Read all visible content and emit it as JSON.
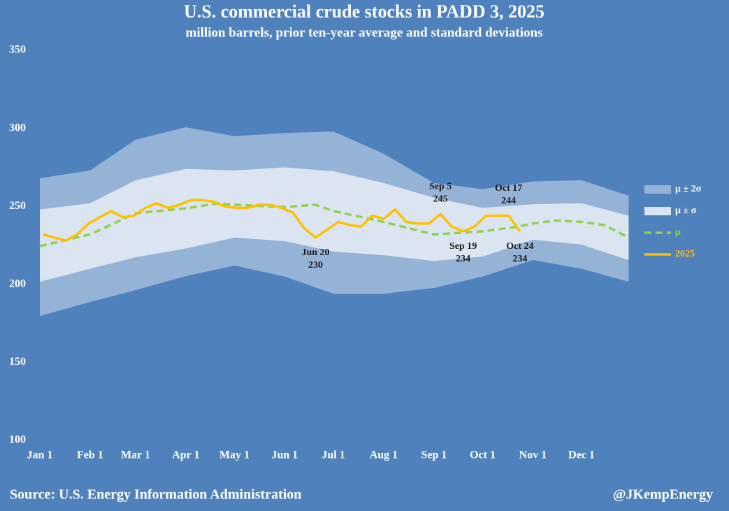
{
  "chart_data": {
    "type": "line",
    "title": "U.S. commercial crude stocks in PADD 3, 2025",
    "subtitle": "million barrels, prior ten-year average and standard deviations",
    "source": "Source: U.S. Energy Information Administration",
    "credit": "@JKempEnergy",
    "xlim": [
      0,
      365
    ],
    "xticks": [
      {
        "value": 0,
        "label": "Jan 1"
      },
      {
        "value": 31,
        "label": "Feb 1"
      },
      {
        "value": 59,
        "label": "Mar 1"
      },
      {
        "value": 90,
        "label": "Apr 1"
      },
      {
        "value": 120,
        "label": "May 1"
      },
      {
        "value": 151,
        "label": "Jun 1"
      },
      {
        "value": 181,
        "label": "Jul 1"
      },
      {
        "value": 212,
        "label": "Aug 1"
      },
      {
        "value": 243,
        "label": "Sep 1"
      },
      {
        "value": 273,
        "label": "Oct 1"
      },
      {
        "value": 304,
        "label": "Nov 1"
      },
      {
        "value": 334,
        "label": "Dec 1"
      }
    ],
    "ylim": [
      100,
      350
    ],
    "yticks": [
      100,
      150,
      200,
      250,
      300,
      350
    ],
    "grid": false,
    "legend": "right",
    "series": [
      {
        "name": "μ ± 2σ",
        "kind": "band",
        "color": "#95b3d7",
        "x": [
          0,
          31,
          59,
          90,
          120,
          151,
          181,
          212,
          243,
          273,
          304,
          334,
          363
        ],
        "upper": [
          268,
          273,
          292.7,
          300.7,
          295,
          297,
          298,
          283.7,
          265,
          261,
          266,
          266.7,
          256.8
        ],
        "lower": [
          179.7,
          188.7,
          196.3,
          205.3,
          212,
          205,
          194,
          194,
          197.7,
          205,
          215.6,
          210,
          201.7
        ]
      },
      {
        "name": "μ ± σ",
        "kind": "band",
        "color": "#dbe5f1",
        "x": [
          0,
          31,
          59,
          90,
          120,
          151,
          181,
          212,
          243,
          273,
          304,
          334,
          363
        ],
        "upper": [
          248,
          252,
          266.7,
          274,
          273,
          275,
          272.5,
          265,
          255.5,
          249,
          251.4,
          252,
          244
        ],
        "lower": [
          201.7,
          210,
          217.4,
          223,
          230,
          227.7,
          221,
          218.7,
          215,
          217.8,
          228.6,
          225.5,
          215.6
        ]
      },
      {
        "name": "μ",
        "kind": "line",
        "dashed": true,
        "color": "#92d050",
        "x": [
          0,
          31,
          59,
          90,
          110,
          120,
          151,
          170,
          181,
          212,
          243,
          273,
          293,
          304,
          318,
          334,
          348,
          363
        ],
        "values": [
          224.5,
          232,
          245.6,
          248.7,
          252,
          251,
          249.6,
          251,
          247,
          240,
          232,
          234,
          236.7,
          239,
          241,
          240,
          238,
          230
        ]
      },
      {
        "name": "2025",
        "kind": "line",
        "dashed": false,
        "color": "#ffc000",
        "x": [
          2,
          9,
          16,
          23,
          30,
          37,
          44,
          51,
          58,
          65,
          72,
          79,
          86,
          93,
          100,
          107,
          114,
          121,
          128,
          135,
          142,
          149,
          156,
          163,
          170,
          177,
          184,
          191,
          198,
          205,
          212,
          219,
          226,
          233,
          240,
          247,
          254,
          261,
          268,
          275,
          282,
          289,
          296
        ],
        "values": [
          232,
          230,
          228,
          232,
          239,
          243,
          247,
          243,
          244,
          249,
          252,
          249,
          251,
          254,
          254,
          253,
          250,
          249,
          249,
          251,
          251,
          249,
          246,
          236,
          230,
          235,
          240,
          238,
          237,
          244,
          242,
          248,
          240,
          239,
          239,
          245,
          237,
          234,
          237,
          244,
          244,
          244,
          234
        ]
      }
    ],
    "annotations": [
      {
        "label": "Jun 20",
        "value": 230
      },
      {
        "label": "Sep 5",
        "value": 245
      },
      {
        "label": "Sep 19",
        "value": 234
      },
      {
        "label": "Oct 17",
        "value": 244
      },
      {
        "label": "Oct 24",
        "value": 234
      }
    ]
  }
}
